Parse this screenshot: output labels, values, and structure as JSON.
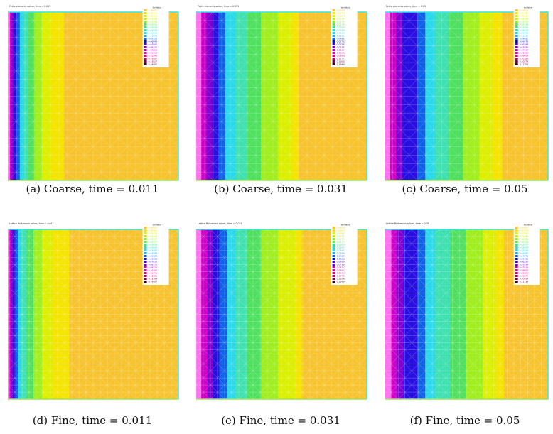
{
  "colors": {
    "field": "#f7c430",
    "mesh": "#ffffff",
    "border_cyan": "#34e6e6",
    "border_green": "#9ae650",
    "legend_palette": [
      "#f7c430",
      "#f4e400",
      "#e0f000",
      "#c0f000",
      "#90ee20",
      "#5ce840",
      "#30e480",
      "#20e4c0",
      "#2ad8ec",
      "#20b0f0",
      "#1060e8",
      "#0010e0",
      "#4000d8",
      "#8000d0",
      "#c000c8",
      "#e000a8",
      "#e00080",
      "#b00060",
      "#800040",
      "#400020"
    ]
  },
  "panels": [
    {
      "caption": "(a) Coarse, time = 0.011",
      "plot_title": "Finite elements solver, time = 0.011",
      "legend_header": "IsoValue",
      "legend_values": [
        "0.00000",
        "0.00511",
        "0.00952",
        "0.01323",
        "0.01798",
        "0.02212",
        "0.02654",
        "0.03092",
        "0.03513",
        "0.03998",
        "0.05123",
        "0.06043",
        "0.07082",
        "0.08222",
        "0.09263",
        "0.10408",
        "0.11546",
        "0.12687",
        "0.13827",
        "0.14967"
      ],
      "mesh": "coarse",
      "field_bands": [
        {
          "color": "#ff70f0",
          "x_end": 0.012
        },
        {
          "color": "#d000c8",
          "x_end": 0.022
        },
        {
          "color": "#8000d0",
          "x_end": 0.032
        },
        {
          "color": "#2a10e0",
          "x_end": 0.05
        },
        {
          "color": "#1060e8",
          "x_end": 0.07
        },
        {
          "color": "#2ad8ec",
          "x_end": 0.095
        },
        {
          "color": "#40e0b0",
          "x_end": 0.12
        },
        {
          "color": "#50e060",
          "x_end": 0.155
        },
        {
          "color": "#a0ee20",
          "x_end": 0.2
        },
        {
          "color": "#dcef00",
          "x_end": 0.25
        },
        {
          "color": "#f4e400",
          "x_end": 0.33
        },
        {
          "color": "#f7c430",
          "x_end": 1.0
        }
      ]
    },
    {
      "caption": "(b) Coarse, time = 0.031",
      "plot_title": "Finite elements solver, time = 0.031",
      "legend_header": "IsoValue",
      "legend_values": [
        "0.00000",
        "0.00405",
        "0.00878",
        "0.01283",
        "0.01742",
        "0.02192",
        "0.02634",
        "0.03069",
        "0.03525",
        "0.03962",
        "0.04883",
        "0.05703",
        "0.06547",
        "0.07392",
        "0.08237",
        "0.09082",
        "0.09926",
        "0.10771",
        "0.11615",
        "0.12460"
      ],
      "mesh": "coarse",
      "field_bands": [
        {
          "color": "#ff70f0",
          "x_end": 0.03
        },
        {
          "color": "#d000c8",
          "x_end": 0.06
        },
        {
          "color": "#8000d0",
          "x_end": 0.095
        },
        {
          "color": "#2a10e0",
          "x_end": 0.13
        },
        {
          "color": "#1060e8",
          "x_end": 0.17
        },
        {
          "color": "#2ad8ec",
          "x_end": 0.23
        },
        {
          "color": "#40e0b0",
          "x_end": 0.3
        },
        {
          "color": "#50e060",
          "x_end": 0.38
        },
        {
          "color": "#a0ee20",
          "x_end": 0.48
        },
        {
          "color": "#dcef00",
          "x_end": 0.56
        },
        {
          "color": "#f4e400",
          "x_end": 0.6
        },
        {
          "color": "#f7c430",
          "x_end": 1.0
        }
      ]
    },
    {
      "caption": "(c) Coarse, time = 0.05",
      "plot_title": "Finite elements solver, time = 0.05",
      "legend_header": "IsoValue",
      "legend_values": [
        "0.00000",
        "0.00383",
        "0.00811",
        "0.01248",
        "0.01702",
        "0.02134",
        "0.02586",
        "0.03012",
        "0.03448",
        "0.03891",
        "0.04682",
        "0.05479",
        "0.06264",
        "0.07049",
        "0.07834",
        "0.08619",
        "0.09404",
        "0.10189",
        "0.10974",
        "0.11759"
      ],
      "mesh": "coarse",
      "field_bands": [
        {
          "color": "#ff70f0",
          "x_end": 0.035
        },
        {
          "color": "#d000c8",
          "x_end": 0.07
        },
        {
          "color": "#8000d0",
          "x_end": 0.11
        },
        {
          "color": "#2a10e0",
          "x_end": 0.2
        },
        {
          "color": "#1060e8",
          "x_end": 0.25
        },
        {
          "color": "#2ad8ec",
          "x_end": 0.31
        },
        {
          "color": "#40e0b0",
          "x_end": 0.39
        },
        {
          "color": "#50e060",
          "x_end": 0.48
        },
        {
          "color": "#a0ee20",
          "x_end": 0.58
        },
        {
          "color": "#dcef00",
          "x_end": 0.66
        },
        {
          "color": "#f4e400",
          "x_end": 0.72
        },
        {
          "color": "#f7c430",
          "x_end": 1.0
        }
      ]
    },
    {
      "caption": "(d) Fine, time = 0.011",
      "plot_title": "Lattice Boltzmann solver, time = 0.011",
      "legend_header": "IsoValue",
      "legend_values": [
        "0.00000",
        "0.00491",
        "0.00923",
        "0.01311",
        "0.01764",
        "0.02197",
        "0.02628",
        "0.03065",
        "0.03487",
        "0.03944",
        "0.05102",
        "0.05992",
        "0.07012",
        "0.08171",
        "0.09213",
        "0.10362",
        "0.11496",
        "0.12621",
        "0.13764",
        "0.14907"
      ],
      "mesh": "fine",
      "field_bands": [
        {
          "color": "#ff70f0",
          "x_end": 0.01
        },
        {
          "color": "#d000c8",
          "x_end": 0.02
        },
        {
          "color": "#8000d0",
          "x_end": 0.03
        },
        {
          "color": "#2a10e0",
          "x_end": 0.045
        },
        {
          "color": "#1060e8",
          "x_end": 0.06
        },
        {
          "color": "#2ad8ec",
          "x_end": 0.08
        },
        {
          "color": "#40e0b0",
          "x_end": 0.11
        },
        {
          "color": "#50e060",
          "x_end": 0.15
        },
        {
          "color": "#a0ee20",
          "x_end": 0.2
        },
        {
          "color": "#dcef00",
          "x_end": 0.26
        },
        {
          "color": "#f4e400",
          "x_end": 0.36
        },
        {
          "color": "#f7c430",
          "x_end": 1.0
        }
      ]
    },
    {
      "caption": "(e) Fine, time = 0.031",
      "plot_title": "Lattice Boltzmann solver, time = 0.031",
      "legend_header": "IsoValue",
      "legend_values": [
        "0.00000",
        "0.00402",
        "0.00865",
        "0.01271",
        "0.01728",
        "0.02173",
        "0.02619",
        "0.03051",
        "0.03497",
        "0.03944",
        "0.04861",
        "0.05686",
        "0.06524",
        "0.07368",
        "0.08212",
        "0.09057",
        "0.09901",
        "0.10745",
        "0.11590",
        "0.12434"
      ],
      "mesh": "fine",
      "field_bands": [
        {
          "color": "#ff70f0",
          "x_end": 0.03
        },
        {
          "color": "#d000c8",
          "x_end": 0.065
        },
        {
          "color": "#8000d0",
          "x_end": 0.1
        },
        {
          "color": "#2a10e0",
          "x_end": 0.135
        },
        {
          "color": "#1060e8",
          "x_end": 0.18
        },
        {
          "color": "#2ad8ec",
          "x_end": 0.23
        },
        {
          "color": "#40e0b0",
          "x_end": 0.3
        },
        {
          "color": "#50e060",
          "x_end": 0.38
        },
        {
          "color": "#a0ee20",
          "x_end": 0.48
        },
        {
          "color": "#dcef00",
          "x_end": 0.58
        },
        {
          "color": "#f4e400",
          "x_end": 0.62
        },
        {
          "color": "#f7c430",
          "x_end": 1.0
        }
      ]
    },
    {
      "caption": "(f) Fine, time = 0.05",
      "plot_title": "Lattice Boltzmann solver, time = 0.05",
      "legend_header": "IsoValue",
      "legend_values": [
        "0.00000",
        "0.00378",
        "0.00805",
        "0.01240",
        "0.01693",
        "0.02128",
        "0.02577",
        "0.03004",
        "0.03439",
        "0.03882",
        "0.04671",
        "0.05466",
        "0.06250",
        "0.07034",
        "0.07818",
        "0.08602",
        "0.09386",
        "0.10170",
        "0.10954",
        "0.11738"
      ],
      "mesh": "fine",
      "field_bands": [
        {
          "color": "#ff70f0",
          "x_end": 0.04
        },
        {
          "color": "#d000c8",
          "x_end": 0.075
        },
        {
          "color": "#8000d0",
          "x_end": 0.115
        },
        {
          "color": "#2a10e0",
          "x_end": 0.2
        },
        {
          "color": "#1060e8",
          "x_end": 0.25
        },
        {
          "color": "#2ad8ec",
          "x_end": 0.31
        },
        {
          "color": "#40e0b0",
          "x_end": 0.4
        },
        {
          "color": "#50e060",
          "x_end": 0.5
        },
        {
          "color": "#a0ee20",
          "x_end": 0.6
        },
        {
          "color": "#dcef00",
          "x_end": 0.68
        },
        {
          "color": "#f4e400",
          "x_end": 0.73
        },
        {
          "color": "#f7c430",
          "x_end": 1.0
        }
      ]
    }
  ]
}
